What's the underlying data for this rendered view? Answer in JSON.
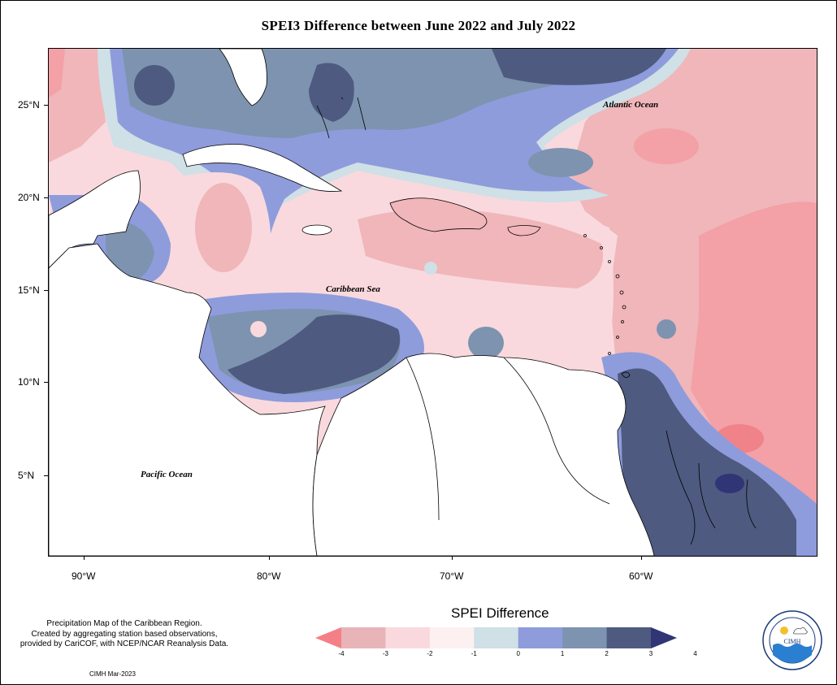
{
  "title": "SPEI3 Difference between June 2022 and July 2022",
  "map": {
    "y_ticks": [
      "25°N",
      "20°N",
      "15°N",
      "10°N",
      "5°N"
    ],
    "x_ticks": [
      "90°W",
      "80°W",
      "70°W",
      "60°W"
    ],
    "labels": {
      "atlantic": "Atlantic Ocean",
      "caribbean": "Caribbean Sea",
      "pacific": "Pacific Ocean"
    },
    "colors": {
      "land": "#ffffff",
      "coastline": "#000000"
    }
  },
  "legend": {
    "title": "SPEI Difference",
    "ticks": [
      "-4",
      "-3",
      "-2",
      "-1",
      "0",
      "1",
      "2",
      "3",
      "4"
    ],
    "colors": [
      "#f47f86",
      "#e8b4b8",
      "#f9d9dd",
      "#fdf0f1",
      "#cfe0e6",
      "#8e9cdc",
      "#7d93b0",
      "#4e5a80",
      "#2f3575"
    ]
  },
  "credit": {
    "line1": "Precipitation Map of the Caribbean Region.",
    "line2": "Created by aggregating station based observations,",
    "line3": "provided by CariCOF, with NCEP/NCAR Reanalysis Data.",
    "signature": "CIMH Mar-2023"
  },
  "logo": {
    "text": "CIMH",
    "ring_text": "Caribbean Institute for Meteorology and Hydrology"
  }
}
